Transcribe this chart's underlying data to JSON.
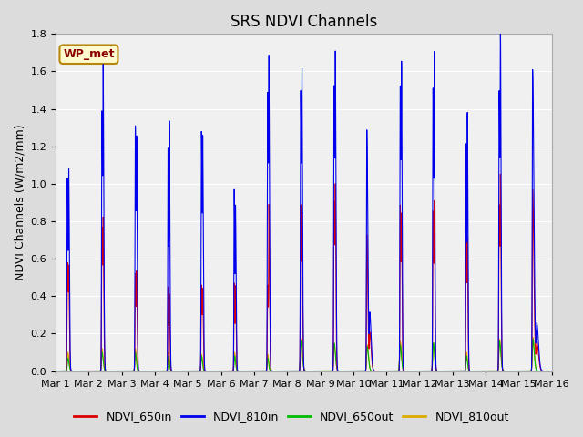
{
  "title": "SRS NDVI Channels",
  "ylabel": "NDVI Channels (W/m2/mm)",
  "annotation_text": "WP_met",
  "annotation_color": "#8B0000",
  "annotation_bg": "#FFFACD",
  "annotation_border": "#B8860B",
  "ylim": [
    0.0,
    1.8
  ],
  "yticks": [
    0.0,
    0.2,
    0.4,
    0.6,
    0.8,
    1.0,
    1.2,
    1.4,
    1.6,
    1.8
  ],
  "xtick_labels": [
    "Mar 1",
    "Mar 2",
    "Mar 3",
    "Mar 4",
    "Mar 5",
    "Mar 6",
    "Mar 7",
    "Mar 8",
    "Mar 9",
    "Mar 10",
    "Mar 11",
    "Mar 12",
    "Mar 13",
    "Mar 14",
    "Mar 15",
    "Mar 16"
  ],
  "colors": {
    "NDVI_650in": "#DD0000",
    "NDVI_810in": "#0000EE",
    "NDVI_650out": "#00BB00",
    "NDVI_810out": "#DDAA00"
  },
  "background_color": "#DCDCDC",
  "axes_bg": "#F0F0F0",
  "grid_color": "#FFFFFF",
  "title_fontsize": 12,
  "label_fontsize": 9,
  "tick_fontsize": 8
}
